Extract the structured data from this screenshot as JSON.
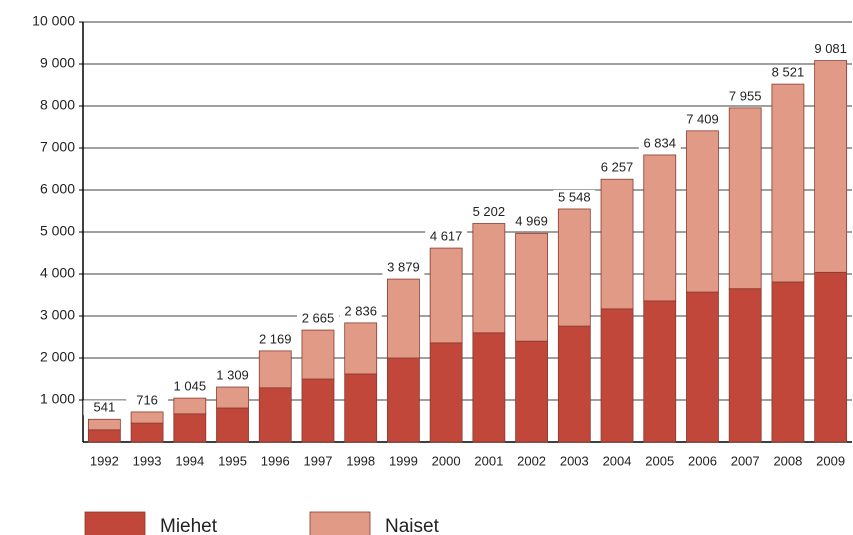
{
  "chart_data": {
    "type": "stacked_bar",
    "categories": [
      "1992",
      "1993",
      "1994",
      "1995",
      "1996",
      "1997",
      "1998",
      "1999",
      "2000",
      "2001",
      "2002",
      "2003",
      "2004",
      "2005",
      "2006",
      "2007",
      "2008",
      "2009"
    ],
    "series": [
      {
        "name": "Miehet",
        "color": "#c0473a",
        "values": [
          290,
          450,
          670,
          810,
          1290,
          1500,
          1620,
          2000,
          2360,
          2600,
          2400,
          2760,
          3170,
          3360,
          3570,
          3650,
          3810,
          4040
        ]
      },
      {
        "name": "Naiset",
        "color": "#e09a85",
        "values": [
          251,
          266,
          375,
          499,
          879,
          1165,
          1216,
          1879,
          2257,
          2602,
          2569,
          2788,
          3087,
          3474,
          3839,
          4305,
          4711,
          5041
        ]
      }
    ],
    "totals": [
      541,
      716,
      1045,
      1309,
      2169,
      2665,
      2836,
      3879,
      4617,
      5202,
      4969,
      5548,
      6257,
      6834,
      7409,
      7955,
      8521,
      9081
    ],
    "total_labels": [
      "541",
      "716",
      "1 045",
      "1 309",
      "2 169",
      "2 665",
      "2 836",
      "3 879",
      "4 617",
      "5 202",
      "4 969",
      "5 548",
      "6 257",
      "6 834",
      "7 409",
      "7 955",
      "8 521",
      "9 081"
    ],
    "ylim": [
      0,
      10000
    ],
    "yticks": [
      {
        "value": 1000,
        "label": "1 000"
      },
      {
        "value": 2000,
        "label": "2 000"
      },
      {
        "value": 3000,
        "label": "3 000"
      },
      {
        "value": 4000,
        "label": "4 000"
      },
      {
        "value": 5000,
        "label": "5 000"
      },
      {
        "value": 6000,
        "label": "6 000"
      },
      {
        "value": 7000,
        "label": "7 000"
      },
      {
        "value": 8000,
        "label": "8 000"
      },
      {
        "value": 9000,
        "label": "9 000"
      },
      {
        "value": 10000,
        "label": "10 000"
      }
    ],
    "grid": true,
    "legend": "bottom"
  }
}
